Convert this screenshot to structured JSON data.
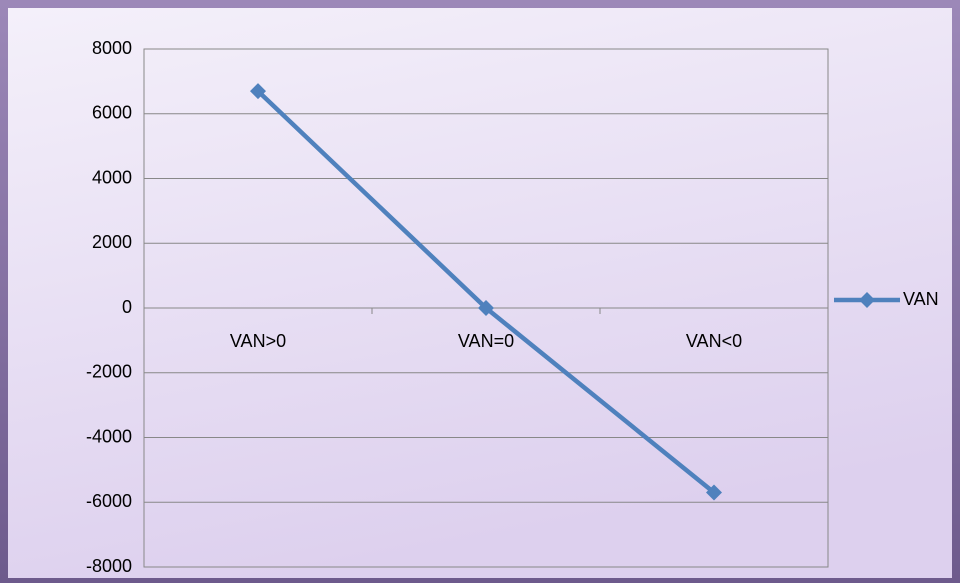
{
  "chart_data": {
    "type": "line",
    "categories": [
      "VAN>0",
      "VAN=0",
      "VAN<0"
    ],
    "series": [
      {
        "name": "VAN",
        "color": "#4f81bd",
        "values": [
          6700,
          0,
          -5700
        ]
      }
    ],
    "ylim": [
      -8000,
      8000
    ],
    "yticks": [
      -8000,
      -6000,
      -4000,
      -2000,
      0,
      2000,
      4000,
      6000,
      8000
    ],
    "grid": true,
    "legend": "right"
  }
}
